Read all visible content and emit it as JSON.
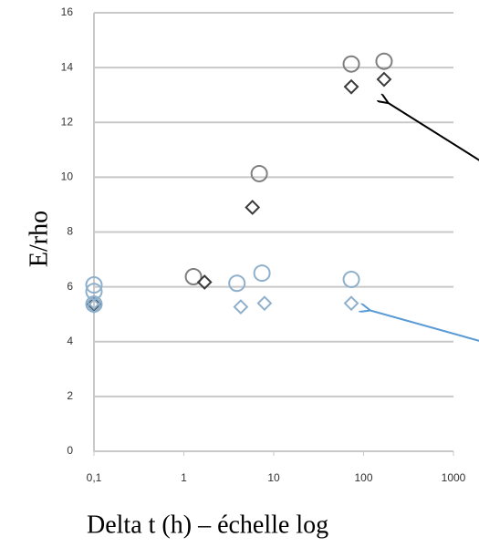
{
  "chart_data": {
    "type": "scatter",
    "xlabel": "Delta t (h) – échelle log",
    "ylabel": "E/rho",
    "xscale": "log",
    "xlim": [
      0.1,
      1000
    ],
    "xticks": [
      {
        "value": 0.1,
        "label": "0,1"
      },
      1,
      10,
      100,
      1000
    ],
    "ylim": [
      0,
      16
    ],
    "yticks": [
      0,
      2,
      4,
      6,
      8,
      10,
      12,
      14,
      16
    ],
    "grid": true,
    "series": [
      {
        "color": "#7f7f7f",
        "marker": "circle",
        "x": [
          73,
          169,
          6.9,
          1.28
        ],
        "values": [
          14.13,
          14.23,
          10.13,
          6.37
        ]
      },
      {
        "color": "#3a3a3a",
        "marker": "diamond",
        "x": [
          73,
          169,
          5.8,
          1.7,
          0.1
        ],
        "values": [
          13.3,
          13.57,
          8.9,
          6.17,
          5.37
        ]
      },
      {
        "color": "#8fb0cc",
        "marker": "circle",
        "x": [
          0.1,
          0.1,
          3.9,
          7.4,
          73,
          0.1
        ],
        "values": [
          6.07,
          5.83,
          6.13,
          6.5,
          6.27,
          5.37
        ]
      },
      {
        "color": "#8fb0cc",
        "marker": "diamond",
        "x": [
          4.3,
          7.9,
          73,
          0.1,
          0.1
        ],
        "values": [
          5.27,
          5.4,
          5.4,
          5.43,
          5.3
        ]
      }
    ]
  }
}
